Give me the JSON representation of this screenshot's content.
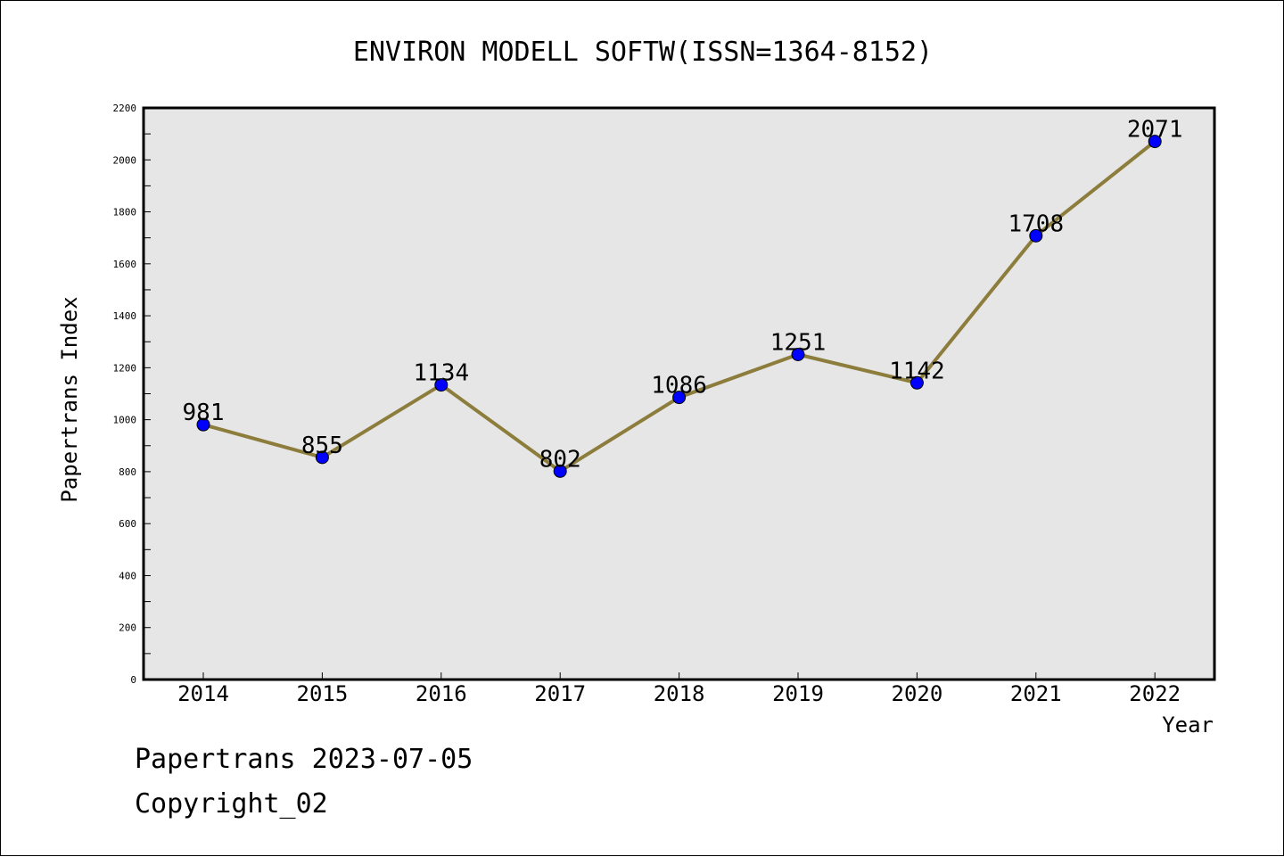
{
  "footer": {
    "date_label": "Papertrans 2023-07-05",
    "copyright_label": "Copyright_02"
  },
  "chart_data": {
    "type": "line",
    "title": "ENVIRON MODELL SOFTW(ISSN=1364-8152)",
    "xlabel": "Year",
    "ylabel": "Papertrans Index",
    "categories": [
      "2014",
      "2015",
      "2016",
      "2017",
      "2018",
      "2019",
      "2020",
      "2021",
      "2022"
    ],
    "series": [
      {
        "values": [
          981,
          855,
          1134,
          802,
          1086,
          1251,
          1142,
          1708,
          2071
        ]
      }
    ],
    "ylim": [
      0,
      2200
    ],
    "yticks": [
      0,
      200,
      400,
      600,
      800,
      1000,
      1200,
      1400,
      1600,
      1800,
      2000,
      2200
    ],
    "grid": false,
    "colors": {
      "plot_background": "#e6e6e6",
      "line": "#8c7d3c",
      "marker": "#0000ff"
    }
  }
}
